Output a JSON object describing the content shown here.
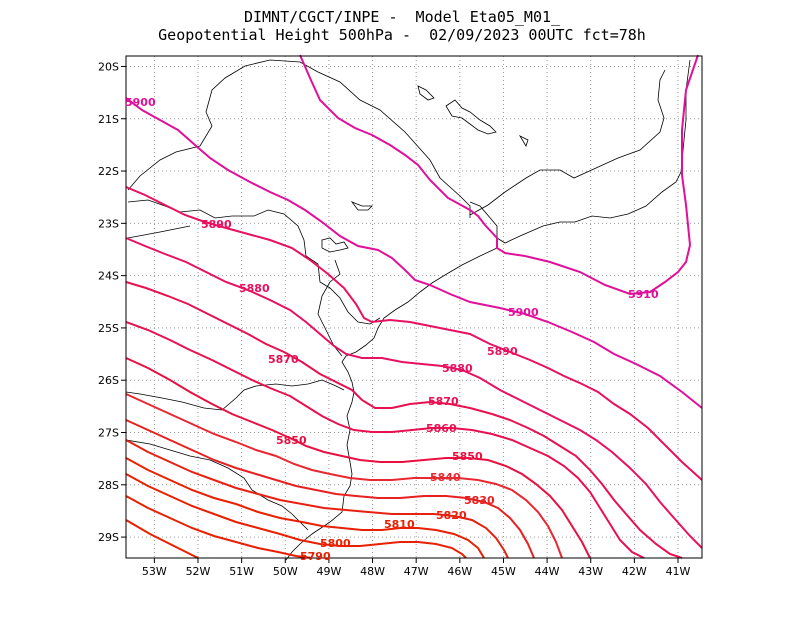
{
  "title": {
    "line1": "DIMNT/CGCT/INPE -  Model Eta05_M01_",
    "line2": "Geopotential Height 500hPa -  02/09/2023 00UTC fct=78h"
  },
  "axes": {
    "lon_ticks": [
      "53W",
      "52W",
      "51W",
      "50W",
      "49W",
      "48W",
      "47W",
      "46W",
      "45W",
      "44W",
      "43W",
      "42W",
      "41W"
    ],
    "lat_ticks": [
      "20S",
      "21S",
      "22S",
      "23S",
      "24S",
      "25S",
      "26S",
      "27S",
      "28S",
      "29S"
    ],
    "lon_range": [
      -53.65,
      -40.45
    ],
    "lat_range": [
      -29.4,
      -19.8
    ]
  },
  "contour_labels": [
    "5900",
    "5890",
    "5880",
    "5870",
    "5850",
    "5880",
    "5870",
    "5860",
    "5850",
    "5840",
    "5830",
    "5820",
    "5810",
    "5800",
    "5790",
    "5900",
    "5890",
    "5910"
  ],
  "colors": {
    "high": "#e0109a",
    "mid": "#e81050",
    "low": "#e82000",
    "coast": "#000000",
    "grid": "#888888"
  }
}
